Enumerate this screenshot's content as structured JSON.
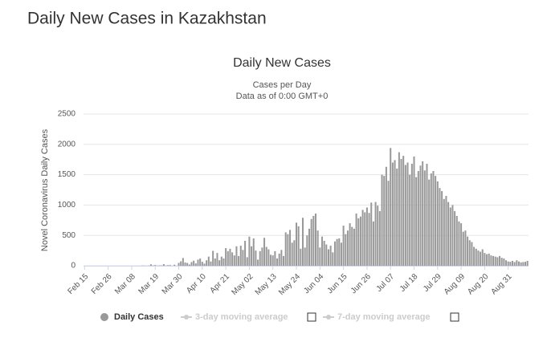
{
  "page_title": "Daily New Cases in Kazakhstan",
  "chart_data": {
    "type": "bar",
    "title": "Daily New Cases",
    "subtitle": "Cases per Day",
    "note": "Data as of 0:00 GMT+0",
    "y_label": "Novel Coronavirus Daily Cases",
    "ylim": [
      0,
      2500
    ],
    "yticks": [
      0,
      500,
      1000,
      1500,
      2000,
      2500
    ],
    "grid": true,
    "categories": [
      "Feb 15",
      null,
      null,
      null,
      null,
      null,
      null,
      null,
      null,
      null,
      null,
      "Feb 26",
      null,
      null,
      null,
      null,
      null,
      null,
      null,
      null,
      null,
      null,
      "Mar 08",
      null,
      null,
      null,
      null,
      null,
      null,
      null,
      null,
      null,
      null,
      "Mar 19",
      null,
      null,
      null,
      null,
      null,
      null,
      null,
      null,
      null,
      null,
      "Mar 30",
      null,
      null,
      null,
      null,
      null,
      null,
      null,
      null,
      null,
      null,
      "Apr 10",
      null,
      null,
      null,
      null,
      null,
      null,
      null,
      null,
      null,
      null,
      "Apr 21",
      null,
      null,
      null,
      null,
      null,
      null,
      null,
      null,
      null,
      null,
      "May 02",
      null,
      null,
      null,
      null,
      null,
      null,
      null,
      null,
      null,
      null,
      "May 13",
      null,
      null,
      null,
      null,
      null,
      null,
      null,
      null,
      null,
      null,
      "May 24",
      null,
      null,
      null,
      null,
      null,
      null,
      null,
      null,
      null,
      null,
      "Jun 04",
      null,
      null,
      null,
      null,
      null,
      null,
      null,
      null,
      null,
      null,
      "Jun 15",
      null,
      null,
      null,
      null,
      null,
      null,
      null,
      null,
      null,
      null,
      "Jun 26",
      null,
      null,
      null,
      null,
      null,
      null,
      null,
      null,
      null,
      null,
      "Jul 07",
      null,
      null,
      null,
      null,
      null,
      null,
      null,
      null,
      null,
      null,
      "Jul 18",
      null,
      null,
      null,
      null,
      null,
      null,
      null,
      null,
      null,
      null,
      "Jul 29",
      null,
      null,
      null,
      null,
      null,
      null,
      null,
      null,
      null,
      null,
      "Aug 09",
      null,
      null,
      null,
      null,
      null,
      null,
      null,
      null,
      null,
      null,
      "Aug 20",
      null,
      null,
      null,
      null,
      null,
      null,
      null,
      null,
      null,
      null,
      "Aug 31",
      null,
      null,
      null,
      null,
      null,
      null,
      null,
      null,
      null
    ],
    "series": [
      {
        "name": "Daily Cases",
        "color": "#999999",
        "values": [
          0,
          0,
          0,
          0,
          0,
          0,
          0,
          0,
          0,
          0,
          0,
          0,
          0,
          0,
          0,
          0,
          0,
          0,
          0,
          0,
          0,
          0,
          0,
          0,
          0,
          0,
          0,
          4,
          2,
          1,
          3,
          23,
          6,
          11,
          3,
          7,
          5,
          26,
          4,
          10,
          10,
          0,
          17,
          0,
          47,
          73,
          127,
          53,
          46,
          20,
          60,
          83,
          38,
          100,
          118,
          65,
          35,
          90,
          150,
          70,
          245,
          120,
          210,
          90,
          150,
          120,
          290,
          240,
          280,
          220,
          170,
          320,
          160,
          330,
          260,
          410,
          140,
          480,
          320,
          450,
          250,
          100,
          240,
          300,
          460,
          310,
          270,
          180,
          170,
          240,
          120,
          200,
          260,
          160,
          550,
          520,
          590,
          380,
          420,
          710,
          650,
          280,
          790,
          300,
          500,
          610,
          770,
          820,
          860,
          580,
          300,
          480,
          410,
          350,
          270,
          330,
          220,
          400,
          440,
          450,
          380,
          660,
          520,
          580,
          700,
          640,
          610,
          860,
          780,
          810,
          920,
          880,
          960,
          870,
          1040,
          730,
          1050,
          990,
          900,
          1500,
          1480,
          1630,
          1400,
          1940,
          1700,
          1740,
          1600,
          1870,
          1760,
          1810,
          1660,
          1700,
          1500,
          1680,
          1800,
          1460,
          1560,
          1650,
          1720,
          1570,
          1680,
          1420,
          1520,
          1560,
          1480,
          1390,
          1280,
          1230,
          1100,
          1150,
          1050,
          960,
          1000,
          900,
          820,
          730,
          700,
          560,
          580,
          480,
          420,
          390,
          310,
          280,
          250,
          230,
          270,
          210,
          190,
          200,
          170,
          160,
          150,
          140,
          160,
          130,
          120,
          90,
          70,
          65,
          80,
          60,
          90,
          70,
          55,
          60,
          65,
          80
        ]
      }
    ],
    "inactive_series": [
      {
        "name": "3-day moving average"
      },
      {
        "name": "7-day moving average"
      }
    ]
  }
}
